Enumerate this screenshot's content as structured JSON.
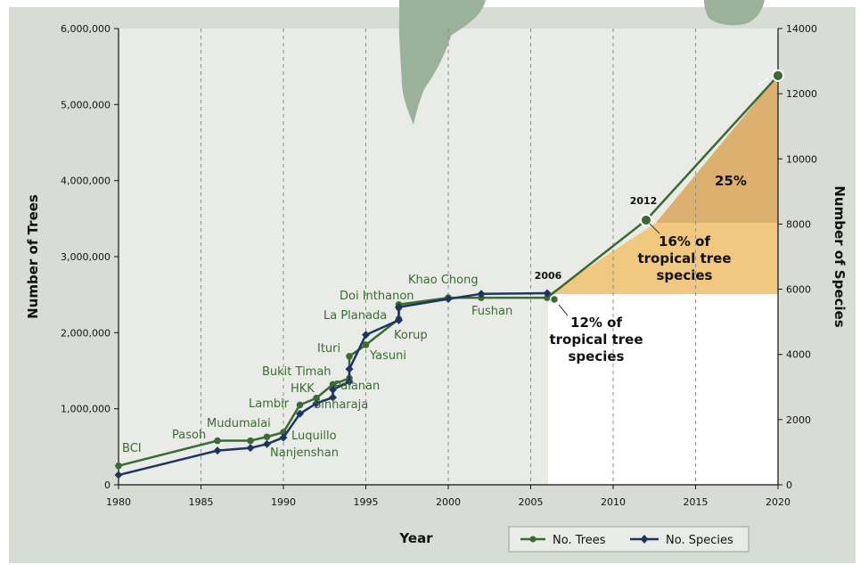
{
  "chart_data": {
    "type": "line",
    "xlabel": "Year",
    "ylabel_left": "Number  of  Trees",
    "ylabel_right": "Number  of  Species",
    "xlim": [
      1980,
      2020
    ],
    "ylim_left": [
      0,
      6000000
    ],
    "ylim_right": [
      0,
      14000
    ],
    "x_ticks": [
      "1980",
      "1985",
      "1990",
      "1995",
      "2000",
      "2005",
      "2010",
      "2015",
      "2020"
    ],
    "y_left_ticks": [
      "0",
      "1,000,000",
      "2,000,000",
      "3,000,000",
      "4,000,000",
      "5,000,000",
      "6,000,000"
    ],
    "y_right_ticks": [
      "0",
      "2000",
      "4000",
      "6000",
      "8000",
      "10000",
      "12000",
      "14000"
    ],
    "grid_x": true,
    "legend_position": "bottom-right",
    "series": [
      {
        "name": "No. Trees",
        "axis": "left",
        "color": "#3b6b32",
        "x": [
          1980,
          1986,
          1988,
          1989,
          1990,
          1991,
          1992,
          1993,
          1994,
          1994,
          1995,
          1997,
          1997,
          1997,
          2000,
          2002,
          2006,
          2012,
          2020
        ],
        "y": [
          250000,
          580000,
          580000,
          630000,
          690000,
          1050000,
          1140000,
          1320000,
          1400000,
          1690000,
          1840000,
          2180000,
          2330000,
          2370000,
          2460000,
          2460000,
          2460000,
          3480000,
          5380000
        ]
      },
      {
        "name": "No. Species",
        "axis": "right",
        "color": "#1f3561",
        "x": [
          1980,
          1986,
          1988,
          1989,
          1990,
          1991,
          1992,
          1993,
          1993,
          1994,
          1994,
          1995,
          1997,
          1997,
          2000,
          2002,
          2006
        ],
        "y": [
          300,
          1050,
          1130,
          1250,
          1450,
          2180,
          2500,
          2680,
          2920,
          3160,
          3550,
          4600,
          5050,
          5450,
          5700,
          5860,
          5880
        ]
      }
    ],
    "site_labels": [
      "BCI",
      "Pasoh",
      "Mudumalai",
      "Lambir",
      "Luquillo",
      "Nanjenshan",
      "HKK",
      "Bukit Timah",
      "Sinharaja",
      "Palanan",
      "Ituri",
      "Yasuni",
      "Korup",
      "La Planada",
      "Doi Inthanon",
      "Khao Chong",
      "Fushan"
    ],
    "annotations": {
      "year_2006": "2006",
      "year_2012": "2012",
      "pct_12": [
        "12% of",
        "tropical tree",
        "species"
      ],
      "pct_16": [
        "16% of",
        "tropical tree",
        "species"
      ],
      "pct_25": "25%"
    },
    "colors": {
      "plot_background": "#e8ebe6",
      "outer_background": "#d7ddd5",
      "map_land": "#9bb19a",
      "band_light": "#f0c880",
      "band_dark": "#dcb16f"
    }
  }
}
